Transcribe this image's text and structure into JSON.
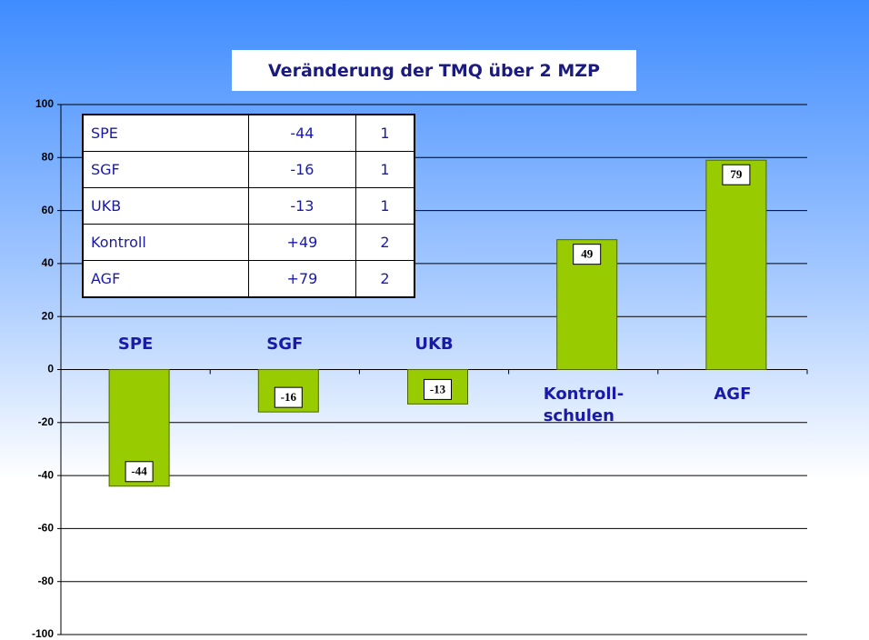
{
  "chart_data": {
    "type": "bar",
    "title": "Veränderung der TMQ über 2 MZP",
    "categories": [
      "SPE",
      "SGF",
      "UKB",
      "Kontroll-\nschulen",
      "AGF"
    ],
    "values": [
      -44,
      -16,
      -13,
      49,
      79
    ],
    "color": "#99cc00",
    "ylim": [
      -100,
      100
    ],
    "yticks": [
      -100,
      -80,
      -60,
      -40,
      -20,
      0,
      20,
      40,
      60,
      80,
      100
    ],
    "grid": true,
    "table": {
      "rows": [
        [
          "SPE",
          "-44",
          "1"
        ],
        [
          "SGF",
          "-16",
          "1"
        ],
        [
          "UKB",
          "-13",
          "1"
        ],
        [
          "Kontroll",
          "+49",
          "2"
        ],
        [
          "AGF",
          "+79",
          "2"
        ]
      ]
    }
  }
}
